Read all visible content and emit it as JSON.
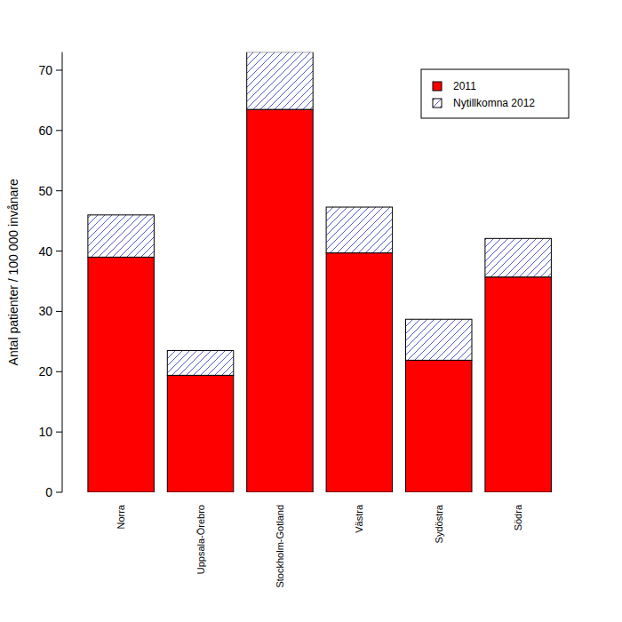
{
  "chart_data": {
    "type": "bar",
    "stacked": true,
    "y_label": "Antal patienter / 100 000 invånare",
    "categories": [
      "Norra",
      "Uppsala-Örebro",
      "Stockholm-Gotland",
      "Västra",
      "Sydöstra",
      "Södra"
    ],
    "series": [
      {
        "name": "2011",
        "color": "#ff0000",
        "values": [
          39,
          19.4,
          63.5,
          39.7,
          21.9,
          35.7
        ]
      },
      {
        "name": "Nytillkomna 2012",
        "color": "#3030c0",
        "line_style": "hatch",
        "values": [
          7,
          4.1,
          9.5,
          7.6,
          6.8,
          6.4
        ]
      }
    ],
    "ylim": [
      0,
      73
    ],
    "yticks": [
      0,
      10,
      20,
      30,
      40,
      50,
      60,
      70
    ],
    "grid": false,
    "legend": "top-right"
  }
}
